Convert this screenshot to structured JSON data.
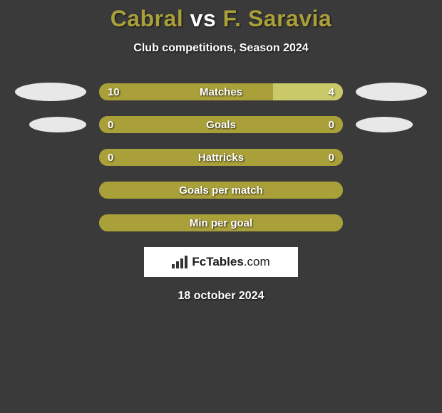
{
  "header": {
    "player1": "Cabral",
    "vs": "vs",
    "player2": "F. Saravia",
    "subtitle": "Club competitions, Season 2024"
  },
  "colors": {
    "bar_base": "#a9a03a",
    "bar_right_alt": "#c9c96a",
    "background": "#3a3a3a",
    "oval": "#e8e8e8",
    "text": "#ffffff"
  },
  "rows": [
    {
      "label": "Matches",
      "left_value": "10",
      "right_value": "4",
      "left_pct": 71.4,
      "right_pct": 28.6,
      "right_color": "#c9c96a",
      "show_ovals": true
    },
    {
      "label": "Goals",
      "left_value": "0",
      "right_value": "0",
      "left_pct": 100,
      "right_pct": 0,
      "right_color": "#a9a03a",
      "show_ovals": true
    },
    {
      "label": "Hattricks",
      "left_value": "0",
      "right_value": "0",
      "left_pct": 100,
      "right_pct": 0,
      "right_color": "#a9a03a",
      "show_ovals": false
    },
    {
      "label": "Goals per match",
      "left_value": "",
      "right_value": "",
      "left_pct": 100,
      "right_pct": 0,
      "right_color": "#a9a03a",
      "show_ovals": false
    },
    {
      "label": "Min per goal",
      "left_value": "",
      "right_value": "",
      "left_pct": 100,
      "right_pct": 0,
      "right_color": "#a9a03a",
      "show_ovals": false
    }
  ],
  "footer": {
    "logo_brand": "FcTables",
    "logo_domain": ".com",
    "date": "18 october 2024"
  }
}
